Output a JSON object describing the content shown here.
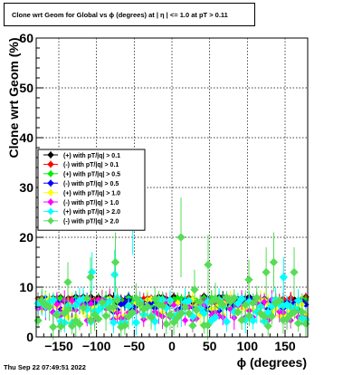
{
  "chart_data": {
    "type": "scatter",
    "title": "Clone wrt Geom for Global vs ϕ (degrees) at | η | <= 1.0 at pT > 0.11",
    "xlabel": "ϕ (degrees)",
    "ylabel": "Clone wrt Geom (%)",
    "xlim": [
      -180,
      180
    ],
    "ylim": [
      0,
      60
    ],
    "x_ticks": [
      -150,
      -100,
      -50,
      0,
      50,
      100,
      150
    ],
    "y_ticks": [
      0,
      10,
      20,
      30,
      40,
      50,
      60
    ],
    "grid": true,
    "legend_position": "middle-left",
    "series": [
      {
        "name": "(+) with pT/|q| > 0.1",
        "color": "#000000",
        "marker": "diamond",
        "level": 7.5,
        "spread": 0.7
      },
      {
        "name": "(-) with pT/|q| > 0.1",
        "color": "#ff0000",
        "marker": "diamond",
        "level": 7.2,
        "spread": 0.7
      },
      {
        "name": "(+) with pT/|q| > 0.5",
        "color": "#00ee00",
        "marker": "diamond",
        "level": 6.8,
        "spread": 1.2
      },
      {
        "name": "(-) with pT/|q| > 0.5",
        "color": "#0000ff",
        "marker": "diamond",
        "level": 6.3,
        "spread": 1.4
      },
      {
        "name": "(+) with pT/|q| > 1.0",
        "color": "#ffff00",
        "marker": "diamond",
        "level": 5.8,
        "spread": 2.0
      },
      {
        "name": "(-) with pT/|q| > 1.0",
        "color": "#ff00ff",
        "marker": "diamond",
        "level": 5.5,
        "spread": 2.2
      },
      {
        "name": "(+) with pT/|q| > 2.0",
        "color": "#00ffff",
        "marker": "diamond",
        "level": 5.3,
        "spread": 2.6
      },
      {
        "name": "(-) with pT/|q| > 2.0",
        "color": "#55dd55",
        "marker": "diamond",
        "level": 5.0,
        "spread": 3.0
      }
    ],
    "outliers": [
      {
        "series": 6,
        "x": -52,
        "y": 22.5,
        "err": 6
      },
      {
        "series": 6,
        "x": -76,
        "y": 12.5,
        "err": 5
      },
      {
        "series": 6,
        "x": -106,
        "y": 13.0,
        "err": 4
      },
      {
        "series": 7,
        "x": 12,
        "y": 20.0,
        "err": 8
      },
      {
        "series": 7,
        "x": -75,
        "y": 15.0,
        "err": 6
      },
      {
        "series": 7,
        "x": 48,
        "y": 14.5,
        "err": 6
      },
      {
        "series": 7,
        "x": 125,
        "y": 13.0,
        "err": 5
      },
      {
        "series": 7,
        "x": 135,
        "y": 15.0,
        "err": 6
      },
      {
        "series": 7,
        "x": 162,
        "y": 13.0,
        "err": 5
      },
      {
        "series": 7,
        "x": 102,
        "y": 11.5,
        "err": 4
      },
      {
        "series": 7,
        "x": -138,
        "y": 11.0,
        "err": 4
      },
      {
        "series": 7,
        "x": -108,
        "y": 12.0,
        "err": 4
      },
      {
        "series": 6,
        "x": 148,
        "y": 12.0,
        "err": 4
      },
      {
        "series": 7,
        "x": 30,
        "y": 9.5,
        "err": 4
      }
    ],
    "bins": 72
  },
  "footer": {
    "timestamp": "Thu Sep 22 07:49:51 2022"
  }
}
